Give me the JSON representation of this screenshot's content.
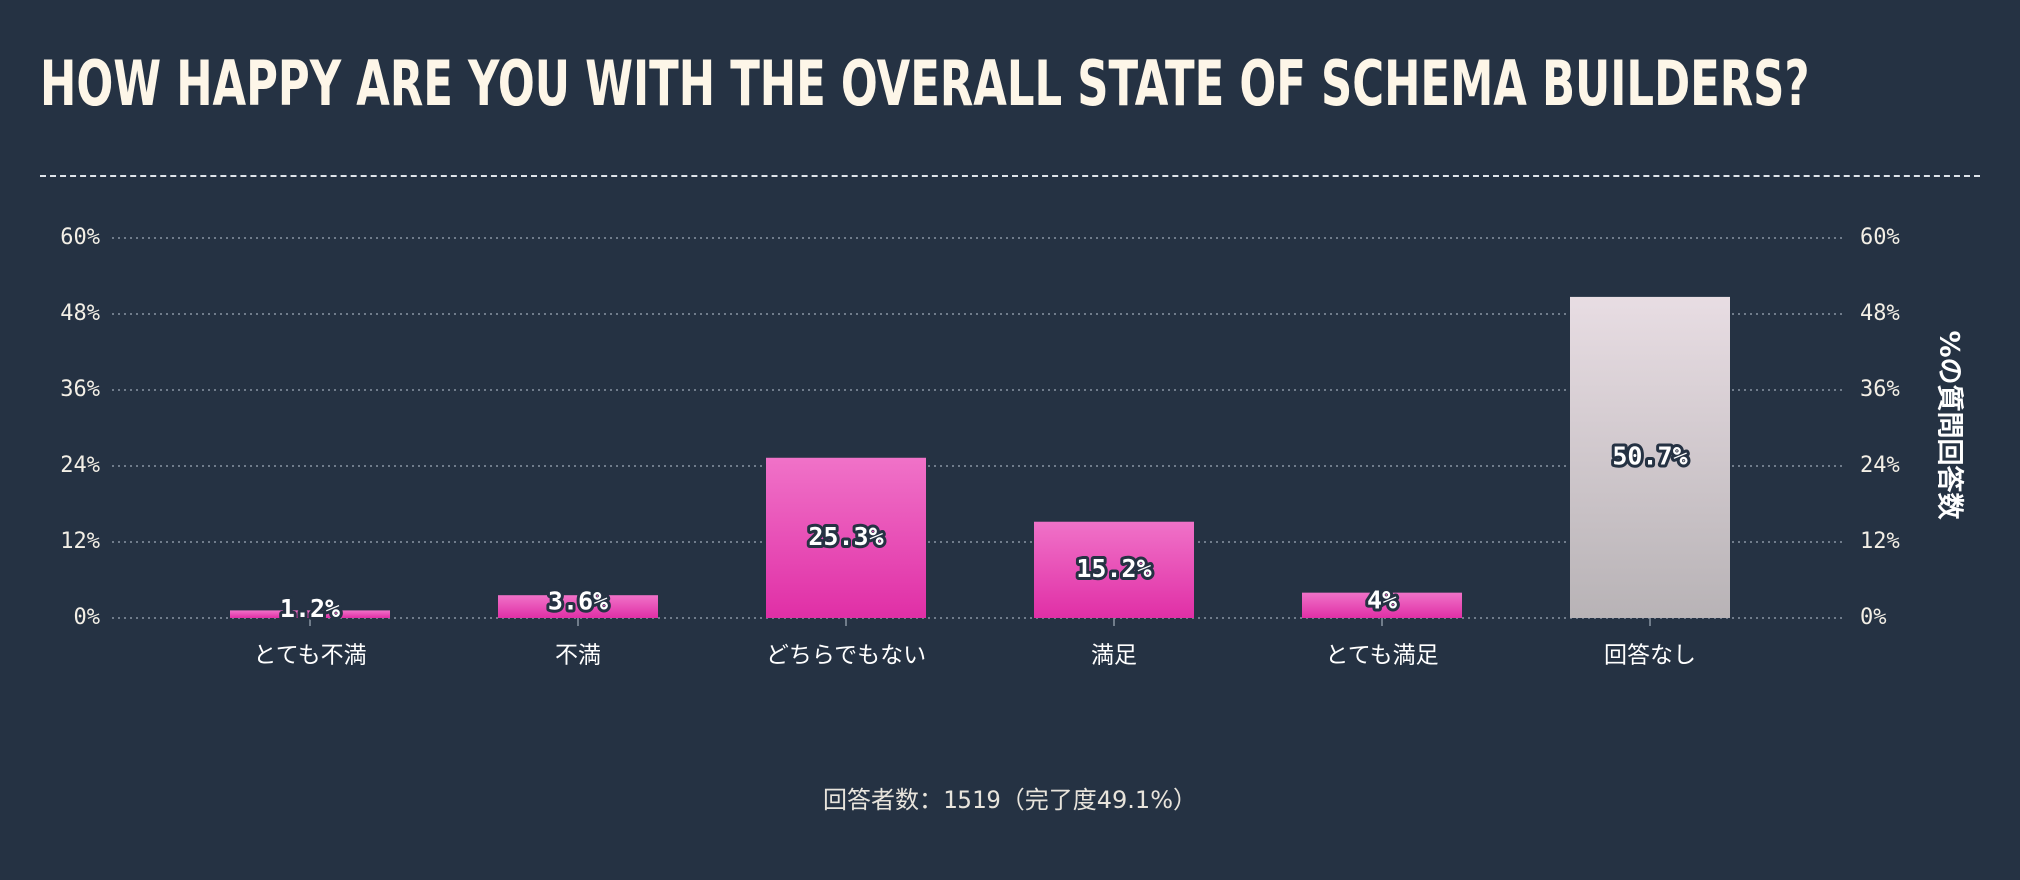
{
  "chart_data": {
    "type": "bar",
    "title": "HOW HAPPY ARE YOU WITH THE OVERALL STATE OF SCHEMA BUILDERS?",
    "categories": [
      "とても不満",
      "不満",
      "どちらでもない",
      "満足",
      "とても満足",
      "回答なし"
    ],
    "values": [
      1.2,
      3.6,
      25.3,
      15.2,
      4,
      50.7
    ],
    "value_labels": [
      "1.2%",
      "3.6%",
      "25.3%",
      "15.2%",
      "4%",
      "50.7%"
    ],
    "ylim": [
      0,
      60
    ],
    "yticks": [
      "0%",
      "12%",
      "24%",
      "36%",
      "48%",
      "60%"
    ],
    "y_tick_values": [
      0,
      12,
      24,
      36,
      48,
      60
    ],
    "ylabel": "%の質問回答数",
    "xlabel": "",
    "grid": true,
    "colors": {
      "bar_top": "#f072c8",
      "bar_bottom": "#e02fa6",
      "no_answer_top": "#e8dde3",
      "no_answer_bottom": "#b8b3b6",
      "background": "#253243",
      "grid": "#8a95a3"
    }
  },
  "footer": {
    "label": "回答者数：",
    "count": "1519",
    "completion": "（完了度49.1%）"
  }
}
